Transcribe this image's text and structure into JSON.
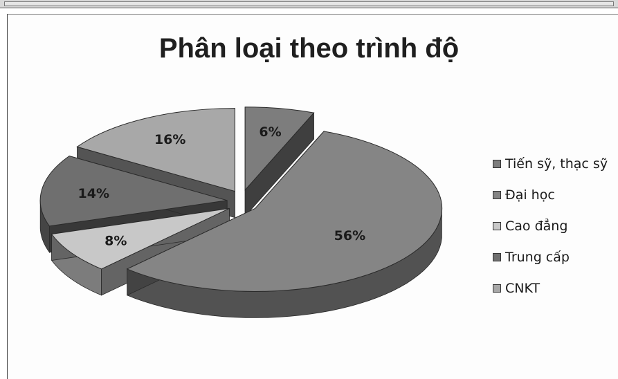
{
  "chart_data": {
    "type": "pie",
    "title": "Phân loại theo trình độ",
    "categories": [
      "Tiến sỹ, thạc sỹ",
      "Đại học",
      "Cao đẳng",
      "Trung cấp",
      "CNKT"
    ],
    "values": [
      6,
      56,
      8,
      14,
      16
    ],
    "value_labels": [
      "6%",
      "56%",
      "8%",
      "14%",
      "16%"
    ],
    "colors": [
      "#7d7d7d",
      "#858585",
      "#c8c8c8",
      "#6f6f6f",
      "#a8a8a8"
    ],
    "exploded": true,
    "style": "3d",
    "legend": "right"
  }
}
